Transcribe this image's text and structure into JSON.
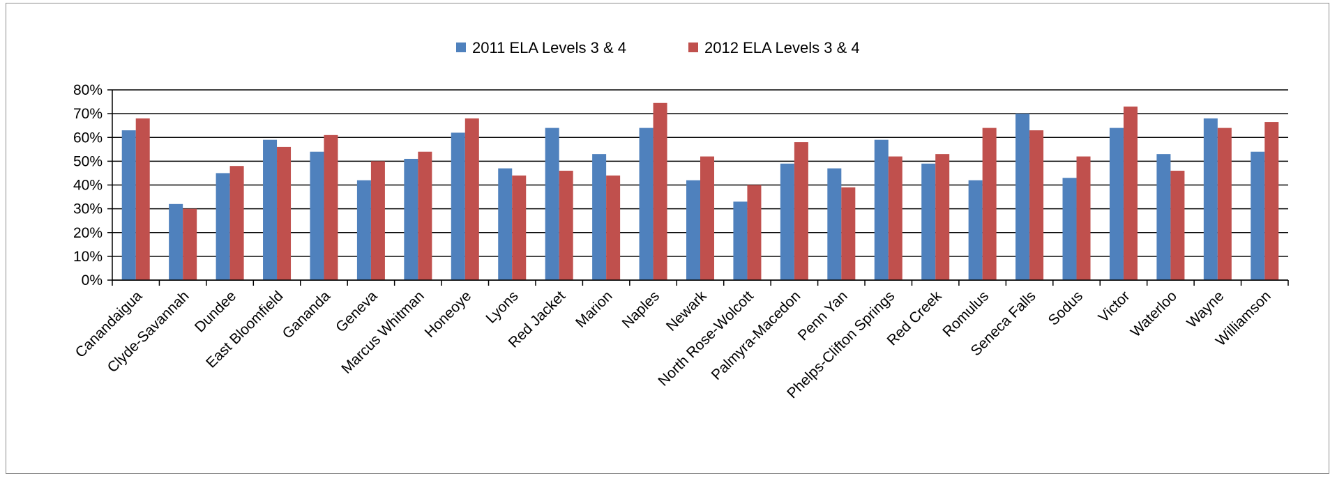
{
  "chart_data": {
    "type": "bar",
    "title": "",
    "xlabel": "",
    "ylabel": "",
    "ylim": [
      0,
      0.8
    ],
    "yticks": [
      "0%",
      "10%",
      "20%",
      "30%",
      "40%",
      "50%",
      "60%",
      "70%",
      "80%"
    ],
    "grid": true,
    "legend_position": "top",
    "categories": [
      "Canandaigua",
      "Clyde-Savannah",
      "Dundee",
      "East Bloomfield",
      "Gananda",
      "Geneva",
      "Marcus Whitman",
      "Honeoye",
      "Lyons",
      "Red Jacket",
      "Marion",
      "Naples",
      "Newark",
      "North Rose-Wolcott",
      "Palmyra-Macedon",
      "Penn Yan",
      "Phelps-Clifton Springs",
      "Red Creek",
      "Romulus",
      "Seneca Falls",
      "Sodus",
      "Victor",
      "Waterloo",
      "Wayne",
      "Williamson"
    ],
    "series": [
      {
        "name": "2011 ELA Levels 3 & 4",
        "color": "#4F81BD",
        "values": [
          0.63,
          0.32,
          0.45,
          0.59,
          0.54,
          0.42,
          0.51,
          0.62,
          0.47,
          0.64,
          0.53,
          0.64,
          0.42,
          0.33,
          0.49,
          0.47,
          0.59,
          0.49,
          0.42,
          0.7,
          0.43,
          0.64,
          0.53,
          0.68,
          0.54
        ]
      },
      {
        "name": "2012 ELA Levels 3 & 4",
        "color": "#C0504D",
        "values": [
          0.68,
          0.3,
          0.48,
          0.56,
          0.61,
          0.5,
          0.54,
          0.68,
          0.44,
          0.46,
          0.44,
          0.745,
          0.52,
          0.4,
          0.58,
          0.39,
          0.52,
          0.53,
          0.64,
          0.63,
          0.52,
          0.73,
          0.46,
          0.64,
          0.665
        ]
      }
    ]
  }
}
